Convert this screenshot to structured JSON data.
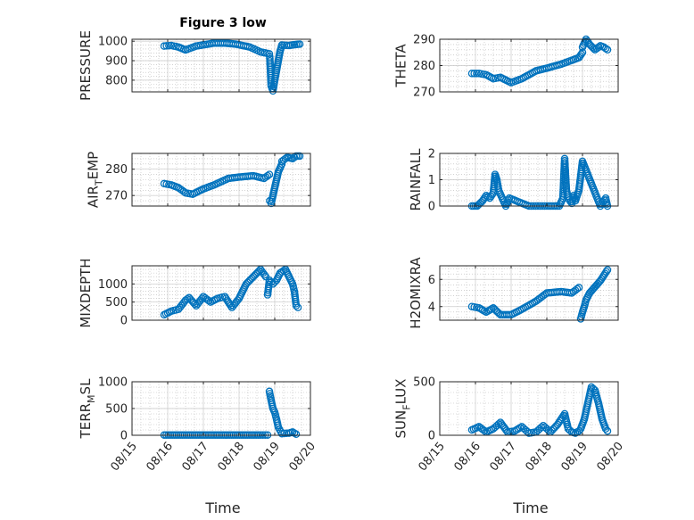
{
  "title": "Figure 3 low",
  "chart_data": [
    {
      "type": "scatter",
      "ylabel": "PRESSURE",
      "ylim": [
        740,
        1010
      ],
      "yticks": [
        800,
        900,
        1000
      ],
      "xticks_labels": false,
      "segments": [
        {
          "x": [
            15.9,
            16.1,
            16.3,
            16.5,
            16.8,
            17.3,
            17.6,
            17.9,
            18.3,
            18.6,
            18.85
          ],
          "y": [
            975,
            978,
            970,
            955,
            975,
            990,
            990,
            985,
            970,
            945,
            935
          ]
        },
        {
          "x": [
            18.86,
            18.9,
            18.95,
            19.0,
            19.05,
            19.1,
            19.15,
            19.2
          ],
          "y": [
            920,
            770,
            745,
            800,
            850,
            900,
            950,
            978
          ]
        },
        {
          "x": [
            19.2,
            19.4,
            19.55,
            19.7
          ],
          "y": [
            980,
            978,
            982,
            985
          ]
        }
      ]
    },
    {
      "type": "scatter",
      "ylabel": "THETA",
      "ylim": [
        270,
        290
      ],
      "yticks": [
        270,
        280,
        290
      ],
      "xticks_labels": false,
      "segments": [
        {
          "x": [
            15.9,
            16.1,
            16.3,
            16.5,
            16.7,
            17.0,
            17.3,
            17.7,
            18.0,
            18.4,
            18.7,
            18.9,
            19.0
          ],
          "y": [
            277,
            277,
            276.5,
            275,
            275.5,
            273.5,
            275,
            278,
            279,
            280.5,
            282,
            283,
            285
          ]
        },
        {
          "x": [
            19.0,
            19.1,
            19.2,
            19.35,
            19.5,
            19.6,
            19.7
          ],
          "y": [
            287,
            290,
            288,
            286,
            287.5,
            287,
            286
          ]
        }
      ]
    },
    {
      "type": "scatter",
      "ylabel": "AIRTEMP",
      "ylim": [
        266,
        286
      ],
      "yticks": [
        270,
        280
      ],
      "xticks_labels": false,
      "segments": [
        {
          "x": [
            15.9,
            16.1,
            16.3,
            16.5,
            16.7,
            17.0,
            17.3,
            17.7,
            18.0,
            18.4,
            18.7,
            18.85
          ],
          "y": [
            274.5,
            274,
            273,
            271,
            270.5,
            272.5,
            274,
            276.5,
            277,
            277.5,
            276.5,
            278
          ]
        },
        {
          "x": [
            18.86,
            18.9,
            18.95,
            19.0,
            19.05,
            19.1,
            19.2
          ],
          "y": [
            268,
            267,
            270,
            273,
            276,
            279,
            282
          ]
        },
        {
          "x": [
            19.2,
            19.35,
            19.5,
            19.6,
            19.7
          ],
          "y": [
            283,
            284.5,
            284,
            285,
            285
          ]
        }
      ]
    },
    {
      "type": "scatter",
      "ylabel": "RAINFALL",
      "ylim": [
        0,
        2
      ],
      "yticks": [
        0,
        1,
        2
      ],
      "xticks_labels": false,
      "segments": [
        {
          "x": [
            15.9,
            16.05,
            16.2,
            16.3,
            16.4,
            16.5,
            16.55,
            16.6,
            16.65,
            16.75,
            16.85,
            16.95,
            17.5,
            18.0,
            18.35,
            18.45,
            18.5,
            18.55,
            18.6,
            18.7,
            18.75,
            18.8,
            18.9,
            19.0,
            19.5,
            19.65,
            19.7
          ],
          "y": [
            0,
            0,
            0.2,
            0.4,
            0.3,
            0.5,
            1.2,
            1.0,
            0.6,
            0.3,
            0,
            0.3,
            0,
            0,
            0,
            0.3,
            1.8,
            0.6,
            0.3,
            0.1,
            0.4,
            0.2,
            0.6,
            1.7,
            0,
            0.3,
            0
          ]
        }
      ]
    },
    {
      "type": "scatter",
      "ylabel": "MIXDEPTH",
      "ylim": [
        0,
        1500
      ],
      "yticks": [
        0,
        500,
        1000
      ],
      "xticks_labels": false,
      "segments": [
        {
          "x": [
            15.9,
            16.1,
            16.3,
            16.5,
            16.6,
            16.8,
            17.0,
            17.2,
            17.4,
            17.6,
            17.8,
            18.0,
            18.2,
            18.4,
            18.6,
            18.75
          ],
          "y": [
            150,
            250,
            300,
            550,
            620,
            400,
            650,
            500,
            600,
            650,
            350,
            600,
            1000,
            1200,
            1400,
            1200
          ]
        },
        {
          "x": [
            18.8,
            18.85,
            18.95,
            19.05,
            19.15,
            19.3,
            19.4,
            19.5,
            19.55,
            19.6,
            19.65
          ],
          "y": [
            700,
            1100,
            1000,
            1100,
            1300,
            1400,
            1200,
            1000,
            800,
            400,
            350
          ]
        }
      ]
    },
    {
      "type": "scatter",
      "ylabel": "H2OMIXRA",
      "ylim": [
        3,
        7
      ],
      "yticks": [
        4,
        6
      ],
      "xticks_labels": false,
      "segments": [
        {
          "x": [
            15.9,
            16.1,
            16.3,
            16.5,
            16.7,
            17.0,
            17.3,
            17.7,
            18.0,
            18.4,
            18.7,
            18.9
          ],
          "y": [
            4.0,
            3.9,
            3.6,
            3.9,
            3.4,
            3.4,
            3.8,
            4.4,
            5.0,
            5.1,
            5.0,
            5.4
          ]
        },
        {
          "x": [
            18.95,
            19.0,
            19.05,
            19.1,
            19.2,
            19.3,
            19.4,
            19.5,
            19.6,
            19.7
          ],
          "y": [
            3.1,
            3.6,
            4.0,
            4.5,
            5.0,
            5.3,
            5.6,
            5.9,
            6.3,
            6.7
          ]
        }
      ]
    },
    {
      "type": "scatter",
      "ylabel": "TERRMSL",
      "ylim": [
        0,
        1000
      ],
      "yticks": [
        0,
        500,
        1000
      ],
      "xticks_labels": true,
      "segments": [
        {
          "x": [
            15.9,
            16.3,
            16.7,
            17.1,
            17.5,
            17.9,
            18.3,
            18.6,
            18.8
          ],
          "y": [
            5,
            5,
            5,
            5,
            5,
            5,
            5,
            5,
            5
          ]
        },
        {
          "x": [
            18.85,
            18.9,
            18.95,
            19.0,
            19.05,
            19.1,
            19.2,
            19.4,
            19.5,
            19.6
          ],
          "y": [
            820,
            650,
            500,
            430,
            300,
            150,
            30,
            40,
            60,
            20
          ]
        }
      ]
    },
    {
      "type": "scatter",
      "ylabel": "SUNFLUX",
      "ylim": [
        0,
        500
      ],
      "yticks": [
        0,
        500
      ],
      "xticks_labels": true,
      "segments": [
        {
          "x": [
            15.9,
            16.1,
            16.3,
            16.5,
            16.7,
            16.9,
            17.1,
            17.3,
            17.5,
            17.7,
            17.9,
            18.1,
            18.3,
            18.5,
            18.6,
            18.7,
            18.8,
            18.9
          ],
          "y": [
            50,
            80,
            30,
            60,
            120,
            30,
            40,
            80,
            20,
            30,
            90,
            30,
            100,
            200,
            60,
            30,
            20,
            40
          ]
        },
        {
          "x": [
            18.95,
            19.05,
            19.15,
            19.25,
            19.35,
            19.45,
            19.55,
            19.65,
            19.7
          ],
          "y": [
            60,
            150,
            300,
            450,
            420,
            300,
            150,
            60,
            40
          ]
        }
      ]
    }
  ],
  "x_axis": {
    "label": "Time",
    "xlim": [
      15,
      20
    ],
    "ticks": [
      15,
      16,
      17,
      18,
      19,
      20
    ],
    "tick_labels": [
      "08/15",
      "08/16",
      "08/17",
      "08/18",
      "08/19",
      "08/20"
    ]
  },
  "ylabel_display": {
    "AIRTEMP": {
      "pre": "AIR",
      "sub": "T",
      "post": "EMP"
    },
    "TERRMSL": {
      "pre": "TERR",
      "sub": "M",
      "post": "SL"
    },
    "SUNFLUX": {
      "pre": "SUN",
      "sub": "F",
      "post": "LUX"
    }
  }
}
